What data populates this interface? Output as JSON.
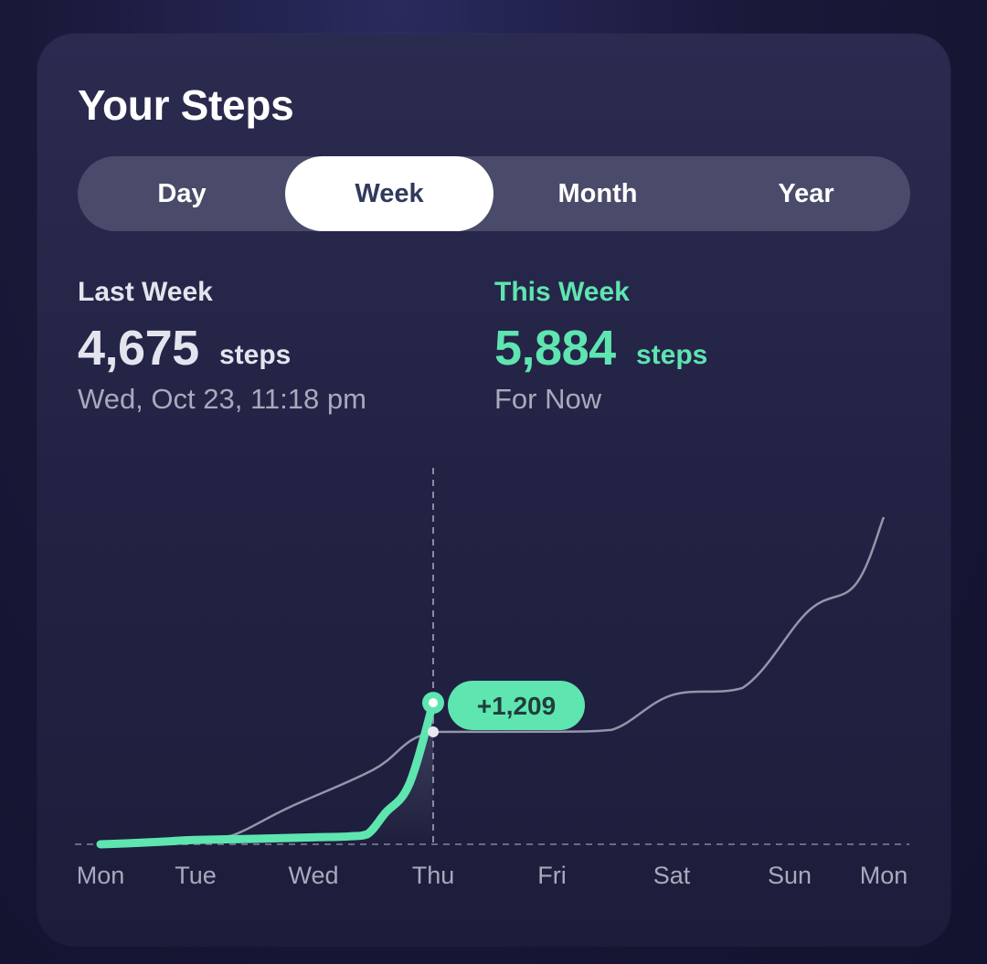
{
  "title": "Your Steps",
  "segments": [
    {
      "label": "Day",
      "active": false
    },
    {
      "label": "Week",
      "active": true
    },
    {
      "label": "Month",
      "active": false
    },
    {
      "label": "Year",
      "active": false
    }
  ],
  "last_week": {
    "label": "Last Week",
    "value": "4,675",
    "unit": "steps",
    "subtitle": "Wed, Oct 23, 11:18 pm"
  },
  "this_week": {
    "label": "This Week",
    "value": "5,884",
    "unit": "steps",
    "subtitle": "For Now"
  },
  "colors": {
    "accent": "#5ee5b0",
    "previous_line": "#a9a9bd",
    "card_bg": "#262648",
    "segment_active_text": "#2f3a5c"
  },
  "chart_data": {
    "type": "line",
    "x_labels": [
      "Mon",
      "Tue",
      "Wed",
      "Thu",
      "Fri",
      "Sat",
      "Sun",
      "Mon"
    ],
    "difference_label": "+1,209",
    "series": [
      {
        "name": "This Week",
        "color": "#5ee5b0",
        "points": [
          [
            0.0,
            0
          ],
          [
            0.4,
            60
          ],
          [
            0.7,
            120
          ],
          [
            1.0,
            180
          ],
          [
            1.5,
            230
          ],
          [
            2.0,
            290
          ],
          [
            2.3,
            330
          ],
          [
            2.45,
            420
          ],
          [
            2.6,
            1300
          ],
          [
            2.8,
            2500
          ],
          [
            3.0,
            5884
          ]
        ]
      },
      {
        "name": "Last Week",
        "color": "#a9a9bd",
        "points": [
          [
            0.0,
            0
          ],
          [
            0.6,
            20
          ],
          [
            1.0,
            260
          ],
          [
            1.3,
            350
          ],
          [
            1.8,
            1550
          ],
          [
            2.5,
            3100
          ],
          [
            3.0,
            4675
          ],
          [
            4.0,
            4680
          ],
          [
            4.5,
            4760
          ],
          [
            5.0,
            6200
          ],
          [
            5.6,
            6500
          ],
          [
            6.2,
            9700
          ],
          [
            6.7,
            10800
          ],
          [
            7.3,
            13600
          ]
        ]
      }
    ],
    "current_index_label": "Thu",
    "baseline": 0,
    "grid": false
  }
}
